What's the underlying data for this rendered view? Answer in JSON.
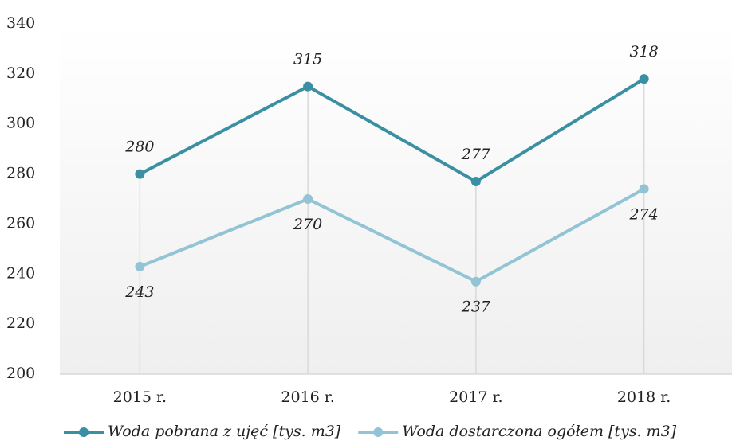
{
  "chart_data": {
    "type": "line",
    "categories": [
      "2015 r.",
      "2016 r.",
      "2017 r.",
      "2018 r."
    ],
    "series": [
      {
        "name": "Woda pobrana z ujęć [tys. m3]",
        "color": "#3a8fa3",
        "values": [
          280,
          315,
          277,
          318
        ]
      },
      {
        "name": "Woda dostarczona ogółem [tys. m3]",
        "color": "#92c4d5",
        "values": [
          243,
          270,
          237,
          274
        ]
      }
    ],
    "ylim": [
      200,
      340
    ],
    "yticks": [
      200,
      220,
      240,
      260,
      280,
      300,
      320,
      340
    ],
    "grid": false,
    "legend": "bottom"
  }
}
